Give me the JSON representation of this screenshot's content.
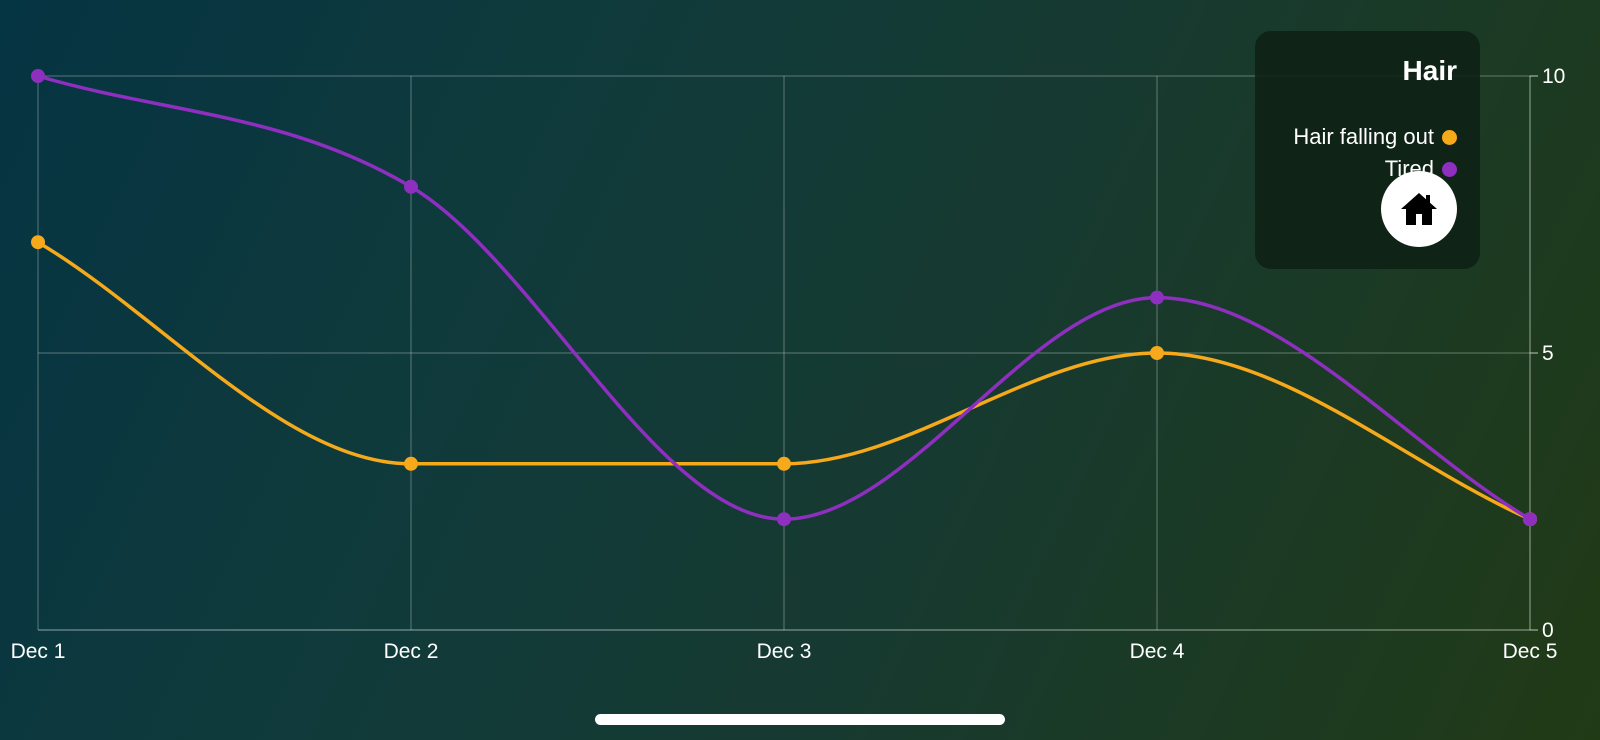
{
  "chart_data": {
    "type": "line",
    "title": "Hair",
    "categories": [
      "Dec 1",
      "Dec 2",
      "Dec 3",
      "Dec 4",
      "Dec 5"
    ],
    "series": [
      {
        "name": "Hair falling out",
        "color": "#f5a91b",
        "values": [
          7,
          3,
          3,
          5,
          2
        ]
      },
      {
        "name": "Tired",
        "color": "#8e2fc0",
        "values": [
          10,
          8,
          2,
          6,
          2
        ]
      }
    ],
    "ylim": [
      0,
      10
    ],
    "yticks": [
      "0",
      "5",
      "10"
    ],
    "y_axis_side": "right",
    "grid": true,
    "smooth": true,
    "legend_placement": "top-right"
  },
  "legend": {
    "home_icon": "house-icon"
  }
}
